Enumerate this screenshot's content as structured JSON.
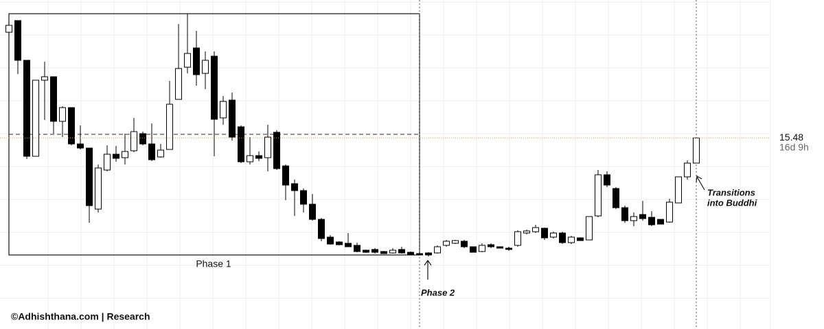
{
  "chart_data": {
    "type": "candlestick",
    "ylim": [
      -7.75,
      32.25
    ],
    "grid": true,
    "up_color": "#ffffff",
    "down_color": "#000000",
    "outline_color": "#000000",
    "open": [
      28.33,
      29.75,
      24.92,
      13.25,
      22.5,
      22.92,
      17.5,
      19.17,
      14.75,
      14.25,
      6.83,
      11.58,
      13.5,
      13.08,
      13.92,
      16.0,
      14.75,
      13.17,
      14.08,
      20.17,
      24.08,
      26.42,
      23.33,
      25.42,
      17.92,
      20.08,
      16.83,
      12.58,
      13.33,
      13.08,
      16.17,
      12.08,
      9.92,
      9.08,
      7.42,
      5.58,
      3.42,
      2.83,
      2.67,
      2.42,
      1.83,
      1.92,
      1.67,
      1.5,
      1.92,
      1.58,
      1.42,
      1.5,
      1.5,
      2.42,
      2.67,
      2.92,
      2.25,
      1.67,
      2.5,
      2.25,
      2.08,
      2.42,
      3.92,
      4.08,
      4.5,
      3.42,
      3.92,
      2.75,
      3.33,
      3.08,
      6.0,
      11.0,
      9.33,
      7.0,
      5.42,
      6.17,
      5.83,
      5.58,
      5.25,
      7.58,
      10.75,
      12.42
    ],
    "high": [
      29.58,
      29.75,
      24.92,
      22.5,
      24.75,
      22.92,
      19.33,
      19.17,
      17.0,
      14.25,
      12.25,
      14.58,
      14.5,
      16.0,
      17.92,
      16.25,
      17.25,
      14.75,
      22.42,
      29.33,
      30.58,
      28.5,
      26.0,
      26.0,
      20.58,
      21.0,
      17.0,
      15.58,
      13.83,
      17.08,
      16.42,
      12.25,
      10.42,
      9.33,
      8.67,
      5.75,
      3.67,
      2.92,
      3.92,
      2.75,
      1.92,
      2.08,
      1.75,
      2.08,
      2.25,
      1.67,
      1.5,
      1.58,
      2.42,
      3.08,
      3.08,
      3.08,
      2.25,
      2.67,
      2.67,
      2.25,
      2.25,
      4.25,
      4.33,
      4.92,
      4.58,
      4.08,
      4.08,
      3.58,
      3.42,
      5.92,
      11.58,
      11.42,
      9.5,
      7.25,
      6.42,
      7.83,
      6.58,
      5.58,
      8.08,
      10.75,
      12.75,
      15.48
    ],
    "low": [
      27.92,
      23.25,
      12.92,
      13.25,
      17.67,
      16.0,
      15.58,
      14.58,
      14.08,
      5.17,
      6.42,
      11.42,
      12.58,
      12.25,
      13.75,
      14.58,
      12.67,
      13.08,
      14.08,
      20.17,
      23.33,
      21.83,
      21.42,
      13.25,
      17.08,
      15.17,
      12.42,
      12.25,
      12.67,
      11.42,
      11.58,
      7.92,
      6.0,
      6.42,
      5.42,
      2.92,
      2.5,
      2.42,
      2.25,
      1.58,
      1.5,
      1.42,
      1.42,
      1.42,
      1.42,
      1.33,
      1.25,
      1.08,
      1.42,
      2.25,
      2.58,
      2.08,
      1.58,
      1.58,
      2.08,
      2.08,
      1.75,
      2.25,
      3.75,
      3.92,
      3.08,
      3.25,
      2.58,
      2.58,
      3.0,
      3.08,
      5.83,
      9.5,
      6.83,
      5.17,
      4.75,
      5.42,
      4.75,
      5.0,
      5.17,
      7.58,
      10.42,
      12.42
    ],
    "close": [
      29.17,
      24.92,
      13.25,
      22.5,
      22.92,
      17.5,
      19.17,
      14.75,
      14.25,
      7.25,
      11.83,
      13.5,
      13.0,
      13.83,
      16.25,
      14.75,
      12.83,
      14.0,
      19.58,
      23.92,
      25.75,
      23.17,
      24.92,
      17.75,
      19.92,
      15.58,
      12.58,
      13.33,
      13.0,
      15.58,
      11.75,
      9.75,
      9.08,
      7.42,
      5.58,
      3.25,
      2.58,
      2.5,
      2.25,
      1.67,
      1.58,
      1.58,
      1.42,
      1.83,
      1.5,
      1.33,
      1.25,
      1.25,
      2.25,
      2.92,
      3.0,
      2.25,
      1.58,
      2.42,
      2.25,
      2.08,
      1.92,
      4.08,
      4.17,
      4.58,
      3.33,
      3.92,
      2.75,
      3.42,
      3.0,
      5.92,
      11.0,
      9.75,
      7.0,
      5.42,
      5.92,
      5.67,
      4.92,
      5.0,
      7.67,
      10.75,
      12.42,
      15.48
    ],
    "countdown": "16d 9h",
    "annotations": {
      "phase1": "Phase 1",
      "phase2": "Phase 2",
      "transition_line1": "Transitions",
      "transition_line2": "into Buddhi"
    },
    "footer": "©Adhishthana.com | Research"
  }
}
